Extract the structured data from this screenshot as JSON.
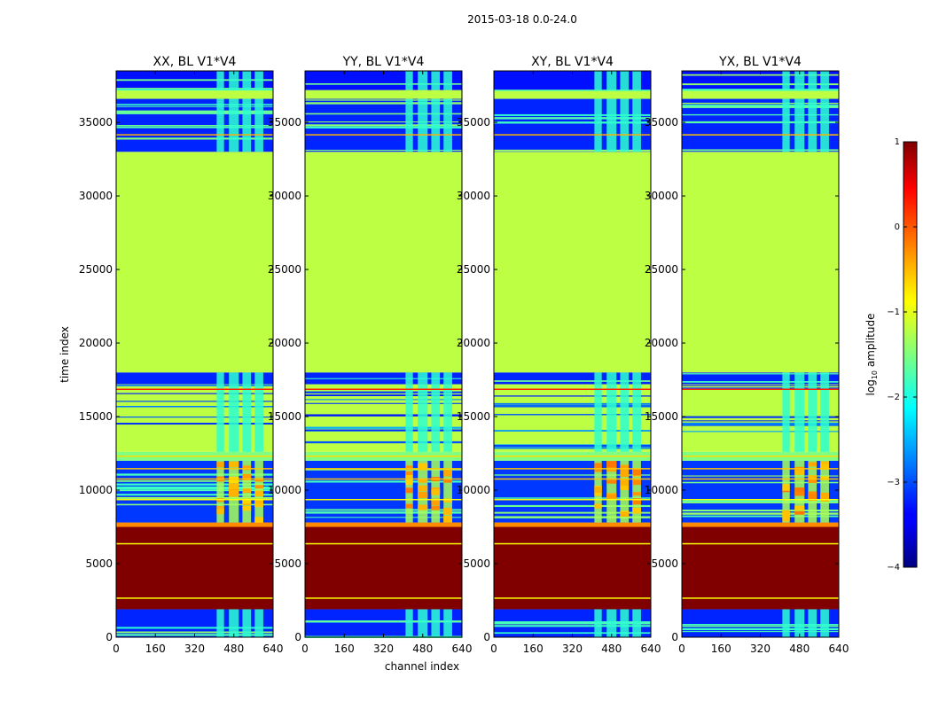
{
  "chart_data": {
    "type": "heatmap",
    "suptitle": "2015-03-18 0.0-24.0",
    "xlabel": "channel index",
    "ylabel": "time index",
    "xlim": [
      0,
      640
    ],
    "ylim": [
      0,
      38500
    ],
    "xticks": [
      0,
      160,
      320,
      480,
      640
    ],
    "yticks": [
      0,
      5000,
      10000,
      15000,
      20000,
      25000,
      30000,
      35000
    ],
    "colormap": "jet",
    "colorbar": {
      "label_prefix": "log",
      "label_base": "10",
      "label_suffix": " amplitude",
      "range": [
        -4,
        1
      ],
      "ticks": [
        1,
        0,
        -1,
        -2,
        -3,
        -4
      ],
      "tick_labels": [
        "1",
        "0",
        "−1",
        "−2",
        "−3",
        "−4"
      ]
    },
    "panels": [
      {
        "title": "XX, BL V1*V4",
        "product": "XX",
        "show_ylabels": true
      },
      {
        "title": "YY, BL V1*V4",
        "product": "YY",
        "show_ylabels": false
      },
      {
        "title": "XY, BL V1*V4",
        "product": "XY",
        "show_ylabels": false
      },
      {
        "title": "YX, BL V1*V4",
        "product": "YX",
        "show_ylabels": false
      }
    ],
    "time_segments": [
      {
        "y0": 0,
        "y1": 1900,
        "kind": "data",
        "level": -3.2
      },
      {
        "y0": 1900,
        "y1": 7500,
        "kind": "flat",
        "level": 1.0
      },
      {
        "y0": 7500,
        "y1": 7800,
        "kind": "flat",
        "level": -0.3
      },
      {
        "y0": 7800,
        "y1": 12000,
        "kind": "data",
        "level": -3.1
      },
      {
        "y0": 12000,
        "y1": 12600,
        "kind": "flat",
        "level": -1.5
      },
      {
        "y0": 12600,
        "y1": 17200,
        "kind": "striped",
        "level": -1.2
      },
      {
        "y0": 17200,
        "y1": 18000,
        "kind": "data",
        "level": -3.2
      },
      {
        "y0": 18000,
        "y1": 33000,
        "kind": "flat",
        "level": -1.2
      },
      {
        "y0": 33000,
        "y1": 36600,
        "kind": "data",
        "level": -3.2
      },
      {
        "y0": 36600,
        "y1": 37200,
        "kind": "flat",
        "level": -1.2
      },
      {
        "y0": 37200,
        "y1": 38500,
        "kind": "data",
        "level": -3.3
      }
    ],
    "rfi_channel_bands": [
      [
        410,
        440
      ],
      [
        460,
        500
      ],
      [
        515,
        550
      ],
      [
        565,
        600
      ]
    ]
  }
}
